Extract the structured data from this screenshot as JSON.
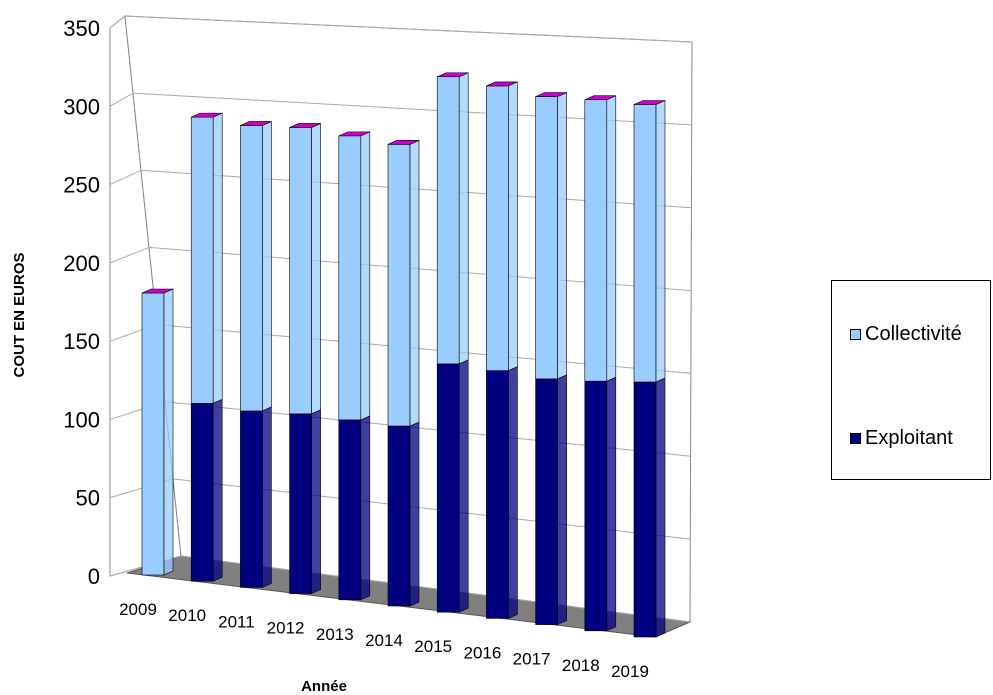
{
  "chart_data": {
    "type": "bar",
    "stacked": true,
    "three_d": true,
    "title": "",
    "xlabel": "Année",
    "ylabel": "COUT EN EUROS",
    "ylim": [
      0,
      350
    ],
    "yticks": [
      0,
      50,
      100,
      150,
      200,
      250,
      300,
      350
    ],
    "grid": true,
    "legend_position": "right",
    "categories": [
      "2009",
      "2010",
      "2011",
      "2012",
      "2013",
      "2014",
      "2015",
      "2016",
      "2017",
      "2018",
      "2019"
    ],
    "series": [
      {
        "name": "Exploitant",
        "color": "#000080",
        "values": [
          0,
          110,
          110,
          113,
          114,
          115,
          160,
          161,
          161,
          165,
          170
        ]
      },
      {
        "name": "Collectivité",
        "color": "#99ccff",
        "values": [
          173,
          177,
          178,
          180,
          180,
          180,
          185,
          185,
          185,
          186,
          185
        ]
      }
    ],
    "top_color": "#cc00cc"
  }
}
